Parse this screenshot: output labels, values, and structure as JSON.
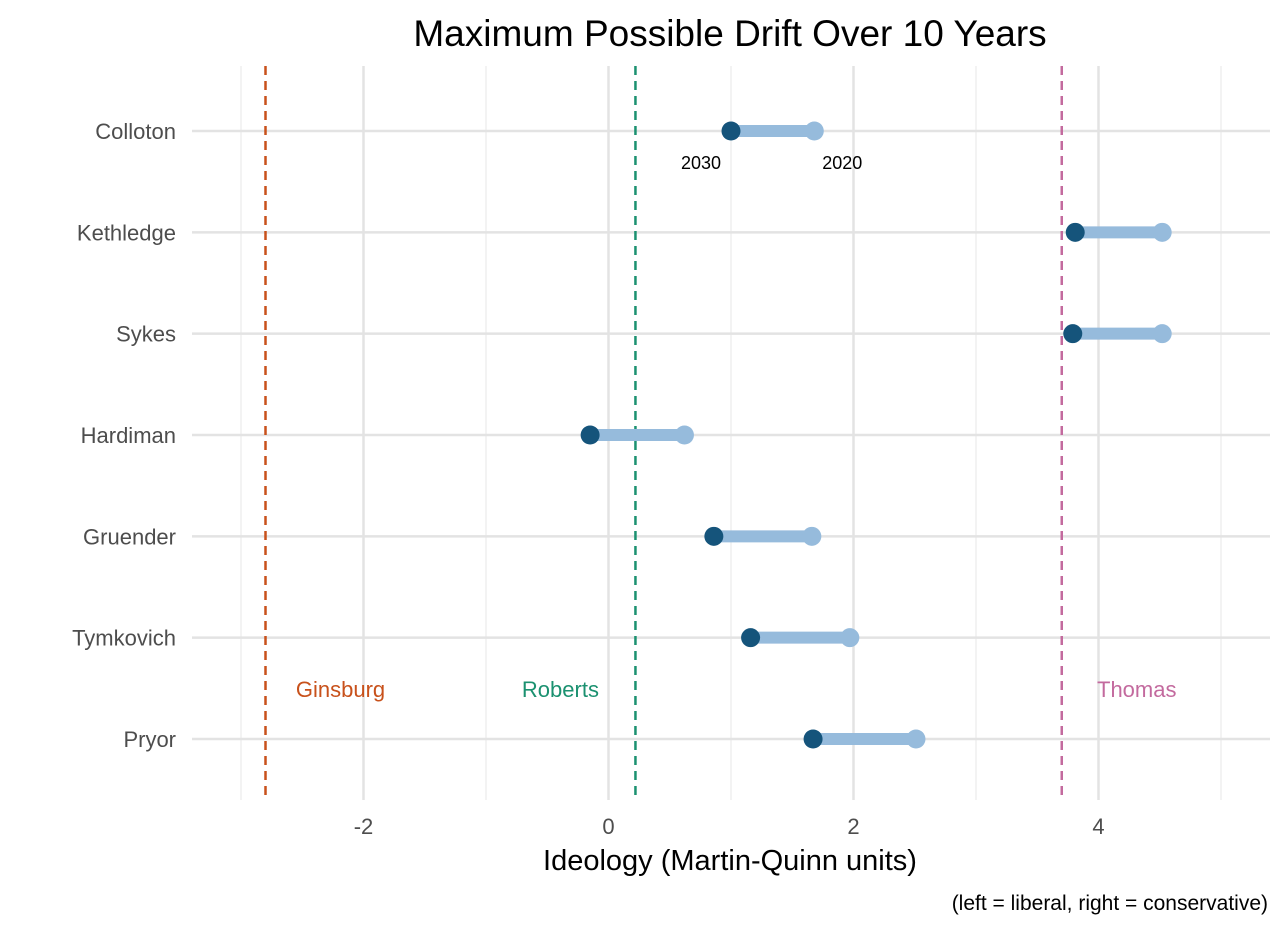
{
  "chart_data": {
    "type": "dumbbell",
    "title": "Maximum Possible Drift Over 10 Years",
    "xlabel": "Ideology (Martin-Quinn units)",
    "caption": "(left = liberal, right = conservative)",
    "xlim": [
      -3.4,
      5.4
    ],
    "xticks": [
      -2,
      0,
      2,
      4
    ],
    "grid": true,
    "categories": [
      "Colloton",
      "Kethledge",
      "Sykes",
      "Hardiman",
      "Gruender",
      "Tymkovich",
      "Pryor"
    ],
    "series": [
      {
        "name": "2020",
        "color": "#96bbdc",
        "values": [
          1.68,
          4.52,
          4.52,
          0.62,
          1.66,
          1.97,
          2.51
        ]
      },
      {
        "name": "2030",
        "color": "#15547b",
        "values": [
          1.0,
          3.81,
          3.79,
          -0.15,
          0.86,
          1.16,
          1.67
        ]
      }
    ],
    "point_annotations": [
      {
        "text": "2030",
        "category": "Colloton",
        "series": "2030"
      },
      {
        "text": "2020",
        "category": "Colloton",
        "series": "2020"
      }
    ],
    "reference_lines": [
      {
        "name": "Ginsburg",
        "x": -2.8,
        "color": "#c8511b"
      },
      {
        "name": "Roberts",
        "x": 0.22,
        "color": "#1b9170"
      },
      {
        "name": "Thomas",
        "x": 3.7,
        "color": "#c36a9e"
      }
    ],
    "segment_color": "#96bbdc"
  }
}
